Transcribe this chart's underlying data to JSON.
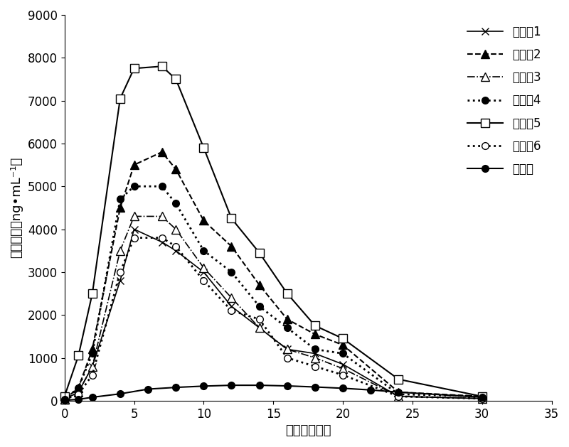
{
  "series": [
    {
      "label": "实施例1",
      "linestyle": "-",
      "marker": "x",
      "markerfacecolor": "black",
      "markeredgecolor": "black",
      "color": "black",
      "linewidth": 1.2,
      "markersize": 7,
      "x": [
        0,
        1,
        2,
        4,
        5,
        7,
        8,
        10,
        12,
        14,
        16,
        18,
        20,
        24,
        30
      ],
      "y": [
        30,
        200,
        800,
        2800,
        4000,
        3700,
        3500,
        3000,
        2200,
        1700,
        1200,
        1100,
        850,
        100,
        50
      ]
    },
    {
      "label": "实施例2",
      "linestyle": "--",
      "marker": "^",
      "markerfacecolor": "black",
      "markeredgecolor": "black",
      "color": "black",
      "linewidth": 1.5,
      "markersize": 8,
      "x": [
        0,
        1,
        2,
        4,
        5,
        7,
        8,
        10,
        12,
        14,
        16,
        18,
        20,
        24,
        30
      ],
      "y": [
        30,
        300,
        1200,
        4500,
        5500,
        5800,
        5400,
        4200,
        3600,
        2700,
        1900,
        1550,
        1300,
        200,
        100
      ]
    },
    {
      "label": "实施例3",
      "linestyle": "-.",
      "marker": "^",
      "markerfacecolor": "white",
      "markeredgecolor": "black",
      "color": "black",
      "linewidth": 1.2,
      "markersize": 8,
      "x": [
        0,
        1,
        2,
        4,
        5,
        7,
        8,
        10,
        12,
        14,
        16,
        18,
        20,
        24,
        30
      ],
      "y": [
        30,
        200,
        800,
        3500,
        4300,
        4300,
        4000,
        3100,
        2400,
        1700,
        1200,
        1000,
        750,
        100,
        50
      ]
    },
    {
      "label": "实施例4",
      "linestyle": ":",
      "marker": "o",
      "markerfacecolor": "black",
      "markeredgecolor": "black",
      "color": "black",
      "linewidth": 2.0,
      "markersize": 7,
      "x": [
        0,
        1,
        2,
        4,
        5,
        7,
        8,
        10,
        12,
        14,
        16,
        18,
        20,
        24,
        30
      ],
      "y": [
        30,
        300,
        1100,
        4700,
        5000,
        5000,
        4600,
        3500,
        3000,
        2200,
        1700,
        1200,
        1100,
        150,
        100
      ]
    },
    {
      "label": "实施例5",
      "linestyle": "-",
      "marker": "s",
      "markerfacecolor": "white",
      "markeredgecolor": "black",
      "color": "black",
      "linewidth": 1.5,
      "markersize": 8,
      "x": [
        0,
        1,
        2,
        4,
        5,
        7,
        8,
        10,
        12,
        14,
        16,
        18,
        20,
        24,
        30
      ],
      "y": [
        100,
        1050,
        2500,
        7050,
        7750,
        7800,
        7500,
        5900,
        4250,
        3450,
        2500,
        1750,
        1450,
        500,
        100
      ]
    },
    {
      "label": "实施例6",
      "linestyle": ":",
      "marker": "o",
      "markerfacecolor": "white",
      "markeredgecolor": "black",
      "color": "black",
      "linewidth": 2.0,
      "markersize": 7,
      "x": [
        0,
        1,
        2,
        4,
        5,
        7,
        8,
        10,
        12,
        14,
        16,
        18,
        20,
        24,
        30
      ],
      "y": [
        30,
        150,
        600,
        3000,
        3800,
        3800,
        3600,
        2800,
        2100,
        1900,
        1000,
        800,
        600,
        100,
        50
      ]
    },
    {
      "label": "普通片",
      "linestyle": "-",
      "marker": "o",
      "markerfacecolor": "black",
      "markeredgecolor": "black",
      "color": "black",
      "linewidth": 1.5,
      "markersize": 7,
      "x": [
        0,
        1,
        2,
        4,
        6,
        8,
        10,
        12,
        14,
        16,
        18,
        20,
        22,
        24,
        30
      ],
      "y": [
        10,
        30,
        80,
        160,
        270,
        310,
        340,
        360,
        360,
        345,
        320,
        290,
        250,
        200,
        80
      ]
    }
  ],
  "xlabel": "时间（小时）",
  "ylabel": "血药浓度（ng•mL⁻¹）",
  "xlim": [
    0,
    35
  ],
  "ylim": [
    0,
    9000
  ],
  "xticks": [
    0,
    5,
    10,
    15,
    20,
    25,
    30,
    35
  ],
  "yticks": [
    0,
    1000,
    2000,
    3000,
    4000,
    5000,
    6000,
    7000,
    8000,
    9000
  ],
  "background_color": "#ffffff",
  "font_size": 13,
  "tick_fontsize": 12,
  "legend_fontsize": 12
}
